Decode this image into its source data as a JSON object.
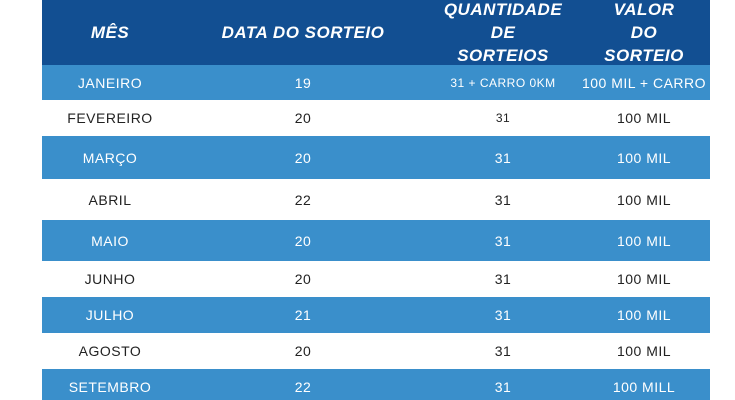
{
  "table": {
    "headers": [
      "MÊS",
      "DATA DO SORTEIO",
      "QUANTIDADE DE SORTEIOS",
      "VALOR DO SORTEIO"
    ],
    "rows": [
      [
        "JANEIRO",
        "19",
        "31 + CARRO 0KM",
        "100 MIL + CARRO"
      ],
      [
        "FEVEREIRO",
        "20",
        "31",
        "100 MIL"
      ],
      [
        "MARÇO",
        "20",
        "31",
        "100 MIL"
      ],
      [
        "ABRIL",
        "22",
        "31",
        "100 MIL"
      ],
      [
        "MAIO",
        "20",
        "31",
        "100 MIL"
      ],
      [
        "JUNHO",
        "20",
        "31",
        "100 MIL"
      ],
      [
        "JULHO",
        "21",
        "31",
        "100 MIL"
      ],
      [
        "AGOSTO",
        "20",
        "31",
        "100 MIL"
      ],
      [
        "SETEMBRO",
        "22",
        "31",
        "100 MILL"
      ]
    ]
  }
}
